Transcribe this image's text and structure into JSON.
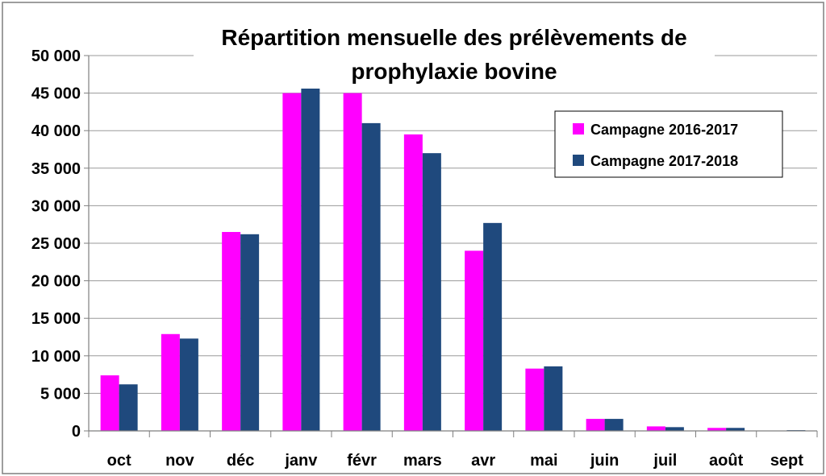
{
  "chart_data": {
    "type": "bar",
    "title_lines": [
      "Répartition mensuelle des prélèvements de",
      "prophylaxie bovine"
    ],
    "categories": [
      "oct",
      "nov",
      "déc",
      "janv",
      "févr",
      "mars",
      "avr",
      "mai",
      "juin",
      "juil",
      "août",
      "sept"
    ],
    "series": [
      {
        "name": "Campagne 2016-2017",
        "color": "#FF00FF",
        "values": [
          7400,
          12900,
          26500,
          45000,
          45000,
          39500,
          24000,
          8300,
          1600,
          600,
          400,
          50
        ]
      },
      {
        "name": "Campagne 2017-2018",
        "color": "#1F497D",
        "values": [
          6200,
          12300,
          26200,
          45800,
          41000,
          37000,
          27700,
          8600,
          1600,
          500,
          400,
          100
        ]
      }
    ],
    "ylim": [
      0,
      50000
    ],
    "yticks": [
      0,
      5000,
      10000,
      15000,
      20000,
      25000,
      30000,
      35000,
      40000,
      45000,
      50000
    ],
    "ytick_labels": [
      "0",
      "5 000",
      "10 000",
      "15 000",
      "20 000",
      "25 000",
      "30 000",
      "35 000",
      "40 000",
      "45 000",
      "50 000"
    ],
    "grid": true,
    "legend_position": "top-right"
  }
}
